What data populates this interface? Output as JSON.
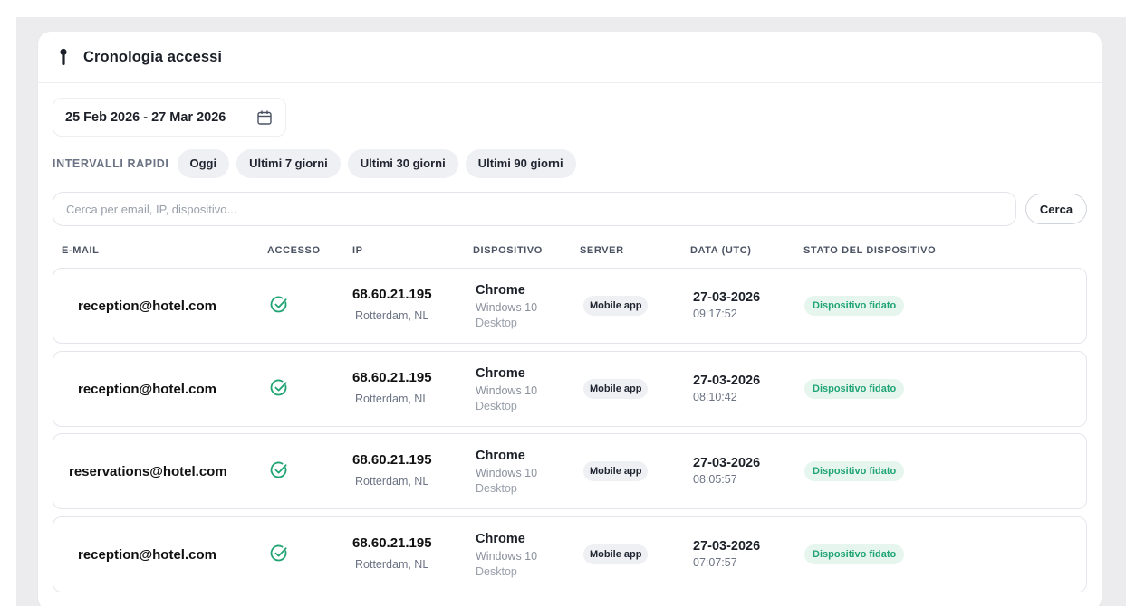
{
  "panel": {
    "title": "Cronologia accessi"
  },
  "date_range": "25 Feb 2026 - 27 Mar 2026",
  "quick_ranges": {
    "label": "INTERVALLI RAPIDI",
    "options": [
      "Oggi",
      "Ultimi 7 giorni",
      "Ultimi 30 giorni",
      "Ultimi 90 giorni"
    ]
  },
  "search": {
    "placeholder": "Cerca per email, IP, dispositivo...",
    "value": "",
    "button_label": "Cerca"
  },
  "table": {
    "columns": [
      "E-MAIL",
      "ACCESSO",
      "IP",
      "DISPOSITIVO",
      "SERVER",
      "DATA (UTC)",
      "STATO DEL DISPOSITIVO"
    ],
    "rows": [
      {
        "email": "reception@hotel.com",
        "access_icon": "check-circle-icon",
        "ip": "68.60.21.195",
        "location": "Rotterdam, NL",
        "device": "Chrome",
        "os": "Windows 10",
        "device_type": "Desktop",
        "server": "Mobile app",
        "date": "27-03-2026",
        "time": "09:17:52",
        "status": "Dispositivo fidato"
      },
      {
        "email": "reception@hotel.com",
        "access_icon": "check-circle-icon",
        "ip": "68.60.21.195",
        "location": "Rotterdam, NL",
        "device": "Chrome",
        "os": "Windows 10",
        "device_type": "Desktop",
        "server": "Mobile app",
        "date": "27-03-2026",
        "time": "08:10:42",
        "status": "Dispositivo fidato"
      },
      {
        "email": "reservations@hotel.com",
        "access_icon": "check-circle-icon",
        "ip": "68.60.21.195",
        "location": "Rotterdam, NL",
        "device": "Chrome",
        "os": "Windows 10",
        "device_type": "Desktop",
        "server": "Mobile app",
        "date": "27-03-2026",
        "time": "08:05:57",
        "status": "Dispositivo fidato"
      },
      {
        "email": "reception@hotel.com",
        "access_icon": "check-circle-icon",
        "ip": "68.60.21.195",
        "location": "Rotterdam, NL",
        "device": "Chrome",
        "os": "Windows 10",
        "device_type": "Desktop",
        "server": "Mobile app",
        "date": "27-03-2026",
        "time": "07:07:57",
        "status": "Dispositivo fidato"
      }
    ]
  },
  "colors": {
    "page_background": "#ececee",
    "card_background": "#ffffff",
    "chip_background": "#eef0f3",
    "success_green": "#1fa472",
    "success_badge_background": "#e6f6ef"
  }
}
